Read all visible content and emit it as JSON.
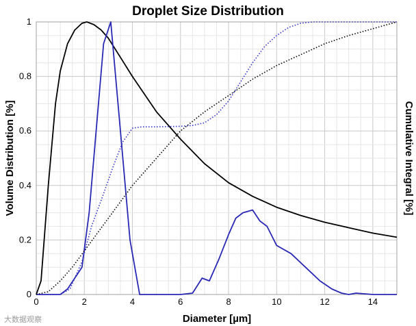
{
  "chart_data": {
    "type": "line",
    "title": "Droplet Size Distribution",
    "xlabel": "Diameter [µm]",
    "ylabel": "Volume Distribution [%]",
    "y2label": "Cumulative Integral [%]",
    "xlim": [
      0,
      15
    ],
    "ylim": [
      0,
      1
    ],
    "xticks": [
      0,
      2,
      4,
      6,
      8,
      10,
      12,
      14
    ],
    "yticks": [
      0,
      0.2,
      0.4,
      0.6,
      0.8,
      1
    ],
    "xtick_labels": [
      "0",
      "2",
      "4",
      "6",
      "8",
      "10",
      "12",
      "14"
    ],
    "ytick_labels": [
      "0",
      "0.2",
      "0.4",
      "0.6",
      "0.8",
      "1"
    ],
    "grid": true,
    "series": [
      {
        "color": "#000000",
        "style": "solid",
        "x": [
          0,
          0.2,
          0.5,
          0.8,
          1.0,
          1.3,
          1.6,
          1.9,
          2.1,
          2.4,
          2.7,
          3.0,
          3.5,
          4.0,
          5.0,
          6.0,
          7.0,
          8.0,
          9.0,
          10.0,
          11.0,
          12.0,
          13.0,
          14.0,
          15.0
        ],
        "y": [
          0,
          0.05,
          0.4,
          0.7,
          0.82,
          0.92,
          0.97,
          0.995,
          1.0,
          0.99,
          0.97,
          0.94,
          0.87,
          0.8,
          0.67,
          0.57,
          0.48,
          0.41,
          0.36,
          0.32,
          0.29,
          0.265,
          0.245,
          0.225,
          0.21
        ]
      },
      {
        "color": "#2828b4",
        "style": "solid",
        "x": [
          0,
          1.0,
          1.3,
          1.9,
          2.2,
          2.8,
          3.1,
          3.5,
          3.9,
          4.3,
          5.0,
          6.0,
          6.5,
          6.9,
          7.2,
          7.6,
          8.0,
          8.3,
          8.6,
          9.0,
          9.3,
          9.6,
          10.0,
          10.6,
          11.2,
          11.8,
          12.3,
          12.7,
          13.0,
          13.3,
          14.0,
          15.0
        ],
        "y": [
          0,
          0,
          0.02,
          0.1,
          0.3,
          0.92,
          1.0,
          0.6,
          0.2,
          0,
          0,
          0,
          0.005,
          0.06,
          0.05,
          0.13,
          0.22,
          0.28,
          0.3,
          0.31,
          0.27,
          0.25,
          0.18,
          0.15,
          0.1,
          0.05,
          0.02,
          0.005,
          0.0,
          0.005,
          0,
          0
        ]
      },
      {
        "color": "#3030c8",
        "style": "dotted",
        "x": [
          0,
          1.0,
          1.4,
          1.9,
          2.3,
          2.8,
          3.2,
          3.6,
          4.0,
          4.4,
          5.0,
          6.0,
          6.5,
          7.0,
          7.5,
          8.0,
          8.5,
          9.0,
          9.5,
          10.0,
          10.5,
          11.0,
          11.5,
          12.0,
          13.0,
          14.0,
          15.0
        ],
        "y": [
          0,
          0,
          0.02,
          0.12,
          0.25,
          0.37,
          0.47,
          0.56,
          0.61,
          0.615,
          0.615,
          0.617,
          0.62,
          0.63,
          0.66,
          0.71,
          0.78,
          0.85,
          0.91,
          0.95,
          0.98,
          0.995,
          1.0,
          1.0,
          1.0,
          1.0,
          1.0
        ]
      },
      {
        "color": "#000000",
        "style": "dotted",
        "x": [
          0,
          0.5,
          1.0,
          1.5,
          2.0,
          3.0,
          4.0,
          5.0,
          6.0,
          7.0,
          8.0,
          9.0,
          10.0,
          11.0,
          12.0,
          13.0,
          14.0,
          15.0
        ],
        "y": [
          0,
          0.01,
          0.05,
          0.1,
          0.16,
          0.28,
          0.4,
          0.5,
          0.6,
          0.67,
          0.73,
          0.79,
          0.84,
          0.88,
          0.92,
          0.95,
          0.975,
          1.0
        ]
      }
    ]
  },
  "watermark": "大数据观察"
}
